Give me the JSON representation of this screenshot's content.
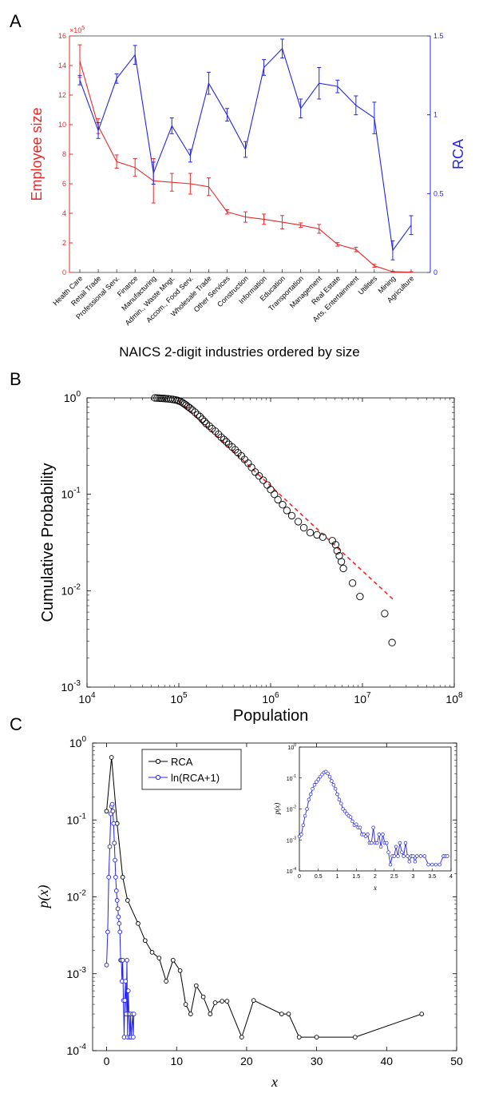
{
  "figure": {
    "panel_labels": [
      "A",
      "B",
      "C"
    ]
  },
  "colors": {
    "employee": "#e8292a",
    "rca": "#2424e6",
    "panelC_rca": "#000000",
    "panelC_ln": "#2424e6",
    "fit": "#e8292a"
  },
  "chart_data": [
    {
      "id": "A",
      "type": "line",
      "title": "",
      "xlabel": "NAICS 2-digit industries ordered by size",
      "ylabel_left": "Employee size",
      "ylabel_right": "RCA",
      "y_left_multiplier": "×10",
      "y_left_multiplier_exp": "5",
      "y_left_lim": [
        0,
        16
      ],
      "y_left_ticks": [
        "0",
        "2",
        "4",
        "6",
        "8",
        "10",
        "12",
        "14",
        "16"
      ],
      "y_right_lim": [
        0,
        1.5
      ],
      "y_right_ticks": [
        "0",
        "0.5",
        "1",
        "1.5"
      ],
      "categories": [
        "Health Care",
        "Retail Trade",
        "Professional Serv.",
        "Finance",
        "Manufacturing",
        "Admin., Waste Mngt.",
        "Accom., Food Serv.",
        "Wholesale Trade",
        "Other Services",
        "Construction",
        "Information",
        "Education",
        "Transportation",
        "Management",
        "Real Estate",
        "Arts, Entertainment",
        "Utilities",
        "Mining",
        "Agriculture"
      ],
      "series": [
        {
          "axis": "left",
          "values": [
            14.3,
            9.9,
            7.5,
            7.1,
            6.2,
            6.1,
            6.0,
            5.8,
            4.1,
            3.75,
            3.6,
            3.4,
            3.2,
            2.95,
            1.9,
            1.55,
            0.45,
            0.05,
            0.02
          ],
          "err": [
            1.1,
            0.5,
            0.45,
            0.6,
            1.5,
            0.6,
            0.7,
            0.6,
            0.15,
            0.35,
            0.35,
            0.45,
            0.15,
            0.3,
            0.12,
            0.15,
            0.1,
            0.03,
            0.03
          ]
        },
        {
          "axis": "right",
          "values": [
            1.22,
            0.9,
            1.23,
            1.38,
            0.63,
            0.93,
            0.74,
            1.2,
            1.0,
            0.78,
            1.3,
            1.42,
            1.04,
            1.2,
            1.18,
            1.06,
            0.98,
            0.14,
            0.3
          ],
          "err": [
            0.03,
            0.05,
            0.03,
            0.06,
            0.07,
            0.05,
            0.04,
            0.07,
            0.04,
            0.05,
            0.05,
            0.06,
            0.06,
            0.1,
            0.04,
            0.06,
            0.1,
            0.06,
            0.06
          ]
        }
      ]
    },
    {
      "id": "B",
      "type": "scatter",
      "title": "",
      "xlabel": "Population",
      "ylabel": "Cumulative Probability",
      "xscale": "log",
      "yscale": "log",
      "xlim": [
        10000,
        100000000
      ],
      "ylim": [
        0.001,
        1
      ],
      "x_ticks": [
        {
          "base": "10",
          "exp": "4"
        },
        {
          "base": "10",
          "exp": "5"
        },
        {
          "base": "10",
          "exp": "6"
        },
        {
          "base": "10",
          "exp": "7"
        },
        {
          "base": "10",
          "exp": "8"
        }
      ],
      "y_ticks": [
        {
          "base": "10",
          "exp": "-3"
        },
        {
          "base": "10",
          "exp": "-2"
        },
        {
          "base": "10",
          "exp": "-1"
        },
        {
          "base": "10",
          "exp": "0"
        }
      ],
      "points": [
        [
          55000,
          1.0
        ],
        [
          58000,
          0.997
        ],
        [
          61000,
          0.994
        ],
        [
          64000,
          0.991
        ],
        [
          67000,
          0.988
        ],
        [
          70000,
          0.985
        ],
        [
          73000,
          0.982
        ],
        [
          77000,
          0.978
        ],
        [
          81000,
          0.972
        ],
        [
          86000,
          0.965
        ],
        [
          91000,
          0.955
        ],
        [
          96000,
          0.945
        ],
        [
          100000,
          0.93
        ],
        [
          105000,
          0.915
        ],
        [
          110000,
          0.89
        ],
        [
          115000,
          0.865
        ],
        [
          120000,
          0.84
        ],
        [
          126000,
          0.81
        ],
        [
          132000,
          0.785
        ],
        [
          140000,
          0.75
        ],
        [
          150000,
          0.71
        ],
        [
          160000,
          0.67
        ],
        [
          170000,
          0.64
        ],
        [
          180000,
          0.6
        ],
        [
          190000,
          0.57
        ],
        [
          200000,
          0.54
        ],
        [
          215000,
          0.51
        ],
        [
          230000,
          0.48
        ],
        [
          250000,
          0.45
        ],
        [
          270000,
          0.42
        ],
        [
          290000,
          0.39
        ],
        [
          310000,
          0.37
        ],
        [
          330000,
          0.35
        ],
        [
          350000,
          0.33
        ],
        [
          380000,
          0.31
        ],
        [
          410000,
          0.29
        ],
        [
          440000,
          0.27
        ],
        [
          480000,
          0.25
        ],
        [
          520000,
          0.23
        ],
        [
          570000,
          0.21
        ],
        [
          620000,
          0.19
        ],
        [
          680000,
          0.17
        ],
        [
          750000,
          0.155
        ],
        [
          830000,
          0.14
        ],
        [
          920000,
          0.125
        ],
        [
          1000000,
          0.112
        ],
        [
          1100000,
          0.1
        ],
        [
          1200000,
          0.088
        ],
        [
          1350000,
          0.078
        ],
        [
          1500000,
          0.068
        ],
        [
          1700000,
          0.06
        ],
        [
          2000000,
          0.052
        ],
        [
          2300000,
          0.045
        ],
        [
          2700000,
          0.04
        ],
        [
          3200000,
          0.038
        ],
        [
          3700000,
          0.036
        ],
        [
          4700000,
          0.033
        ],
        [
          5100000,
          0.03
        ],
        [
          5300000,
          0.026
        ],
        [
          5600000,
          0.023
        ],
        [
          5900000,
          0.02
        ],
        [
          6200000,
          0.017
        ],
        [
          7800000,
          0.012
        ],
        [
          9400000,
          0.0087
        ],
        [
          17500000,
          0.0058
        ],
        [
          21000000,
          0.0029
        ]
      ],
      "fit_line": {
        "x": [
          100000,
          22000000
        ],
        "y": [
          0.93,
          0.008
        ]
      }
    },
    {
      "id": "C",
      "type": "line",
      "title": "",
      "xlabel": "x",
      "ylabel": "p(x)",
      "yscale": "log",
      "xlim": [
        -2,
        50
      ],
      "ylim": [
        0.0001,
        1
      ],
      "x_ticks": [
        "0",
        "10",
        "20",
        "30",
        "40",
        "50"
      ],
      "y_ticks": [
        {
          "base": "10",
          "exp": "-4"
        },
        {
          "base": "10",
          "exp": "-3"
        },
        {
          "base": "10",
          "exp": "-2"
        },
        {
          "base": "10",
          "exp": "-1"
        },
        {
          "base": "10",
          "exp": "0"
        }
      ],
      "legend_position": "top-left",
      "series": [
        {
          "name": "RCA",
          "points": [
            [
              0,
              0.13
            ],
            [
              0.7,
              0.65
            ],
            [
              1.5,
              0.09
            ],
            [
              2.3,
              0.018
            ],
            [
              3.0,
              0.009
            ],
            [
              4.5,
              0.0045
            ],
            [
              5.5,
              0.0027
            ],
            [
              6.5,
              0.0019
            ],
            [
              7.5,
              0.0016
            ],
            [
              8.5,
              0.0008
            ],
            [
              9.5,
              0.0015
            ],
            [
              10.5,
              0.0011
            ],
            [
              11.3,
              0.0004
            ],
            [
              12.0,
              0.0003
            ],
            [
              12.8,
              0.0007
            ],
            [
              13.8,
              0.0005
            ],
            [
              14.8,
              0.0003
            ],
            [
              15.5,
              0.00042
            ],
            [
              16.5,
              0.00044
            ],
            [
              17.2,
              0.00044
            ],
            [
              19.3,
              0.00015
            ],
            [
              21.0,
              0.00045
            ],
            [
              25.0,
              0.0003
            ],
            [
              26.0,
              0.0003
            ],
            [
              27.5,
              0.00015
            ],
            [
              30.0,
              0.00015
            ],
            [
              35.5,
              0.00015
            ],
            [
              45.0,
              0.0003
            ]
          ]
        },
        {
          "name": "ln(RCA+1)",
          "points": [
            [
              0,
              0.0013
            ],
            [
              0.15,
              0.0035
            ],
            [
              0.3,
              0.018
            ],
            [
              0.45,
              0.045
            ],
            [
              0.6,
              0.12
            ],
            [
              0.7,
              0.15
            ],
            [
              0.8,
              0.16
            ],
            [
              0.9,
              0.13
            ],
            [
              1.0,
              0.09
            ],
            [
              1.1,
              0.05
            ],
            [
              1.2,
              0.03
            ],
            [
              1.3,
              0.018
            ],
            [
              1.4,
              0.012
            ],
            [
              1.5,
              0.009
            ],
            [
              1.6,
              0.007
            ],
            [
              1.7,
              0.0055
            ],
            [
              1.8,
              0.0045
            ],
            [
              1.9,
              0.0035
            ],
            [
              2.0,
              0.0015
            ],
            [
              2.1,
              0.0015
            ],
            [
              2.2,
              0.0008
            ],
            [
              2.3,
              0.0015
            ],
            [
              2.4,
              0.00045
            ],
            [
              2.5,
              0.00015
            ],
            [
              2.6,
              0.00045
            ],
            [
              2.7,
              0.0008
            ],
            [
              2.8,
              0.0003
            ],
            [
              2.9,
              0.0015
            ],
            [
              3.0,
              0.00015
            ],
            [
              3.1,
              0.0006
            ],
            [
              3.2,
              0.0003
            ],
            [
              3.3,
              0.00015
            ],
            [
              3.4,
              0.0003
            ],
            [
              3.5,
              0.00015
            ],
            [
              3.7,
              0.0003
            ],
            [
              3.8,
              0.00015
            ],
            [
              3.9,
              0.0003
            ]
          ]
        }
      ],
      "inset": {
        "xlabel": "x",
        "ylabel": "p(x)",
        "xlim": [
          0,
          4
        ],
        "ylim": [
          0.0001,
          1
        ],
        "x_ticks": [
          "0",
          "0.5",
          "1",
          "1.5",
          "2",
          "2.5",
          "3",
          "3.5",
          "4"
        ],
        "y_ticks": [
          {
            "base": "10",
            "exp": "-4"
          },
          {
            "base": "10",
            "exp": "-3"
          },
          {
            "base": "10",
            "exp": "-2"
          },
          {
            "base": "10",
            "exp": "-1"
          },
          {
            "base": "10",
            "exp": "0"
          }
        ],
        "series_name": "ln(RCA+1)",
        "points": [
          [
            0.0,
            0.0013
          ],
          [
            0.05,
            0.0015
          ],
          [
            0.1,
            0.003
          ],
          [
            0.15,
            0.006
          ],
          [
            0.2,
            0.01
          ],
          [
            0.25,
            0.02
          ],
          [
            0.3,
            0.03
          ],
          [
            0.35,
            0.045
          ],
          [
            0.4,
            0.06
          ],
          [
            0.45,
            0.075
          ],
          [
            0.5,
            0.09
          ],
          [
            0.55,
            0.11
          ],
          [
            0.6,
            0.13
          ],
          [
            0.65,
            0.15
          ],
          [
            0.7,
            0.16
          ],
          [
            0.75,
            0.14
          ],
          [
            0.8,
            0.11
          ],
          [
            0.85,
            0.08
          ],
          [
            0.9,
            0.06
          ],
          [
            0.95,
            0.045
          ],
          [
            1.0,
            0.03
          ],
          [
            1.05,
            0.02
          ],
          [
            1.1,
            0.015
          ],
          [
            1.15,
            0.01
          ],
          [
            1.2,
            0.0085
          ],
          [
            1.25,
            0.007
          ],
          [
            1.3,
            0.006
          ],
          [
            1.35,
            0.0055
          ],
          [
            1.4,
            0.004
          ],
          [
            1.45,
            0.003
          ],
          [
            1.5,
            0.0032
          ],
          [
            1.55,
            0.0025
          ],
          [
            1.6,
            0.0025
          ],
          [
            1.65,
            0.0015
          ],
          [
            1.7,
            0.0015
          ],
          [
            1.75,
            0.0013
          ],
          [
            1.8,
            0.0015
          ],
          [
            1.85,
            0.0008
          ],
          [
            1.9,
            0.0008
          ],
          [
            1.95,
            0.0025
          ],
          [
            2.0,
            0.0008
          ],
          [
            2.05,
            0.0008
          ],
          [
            2.1,
            0.0015
          ],
          [
            2.15,
            0.0006
          ],
          [
            2.2,
            0.0015
          ],
          [
            2.25,
            0.0008
          ],
          [
            2.3,
            0.0008
          ],
          [
            2.35,
            0.0004
          ],
          [
            2.4,
            0.00016
          ],
          [
            2.45,
            0.0003
          ],
          [
            2.5,
            0.0003
          ],
          [
            2.55,
            0.0006
          ],
          [
            2.6,
            0.0003
          ],
          [
            2.65,
            0.0008
          ],
          [
            2.7,
            0.0004
          ],
          [
            2.75,
            0.0003
          ],
          [
            2.8,
            0.0008
          ],
          [
            2.85,
            0.0003
          ],
          [
            2.9,
            0.0002
          ],
          [
            2.95,
            0.0003
          ],
          [
            3.0,
            0.0003
          ],
          [
            3.05,
            0.0002
          ],
          [
            3.1,
            0.0003
          ],
          [
            3.2,
            0.0003
          ],
          [
            3.3,
            0.0003
          ],
          [
            3.4,
            0.00016
          ],
          [
            3.5,
            0.00016
          ],
          [
            3.6,
            0.00016
          ],
          [
            3.7,
            0.00016
          ],
          [
            3.8,
            0.0003
          ],
          [
            3.85,
            0.0003
          ],
          [
            3.9,
            0.0003
          ]
        ]
      }
    }
  ]
}
